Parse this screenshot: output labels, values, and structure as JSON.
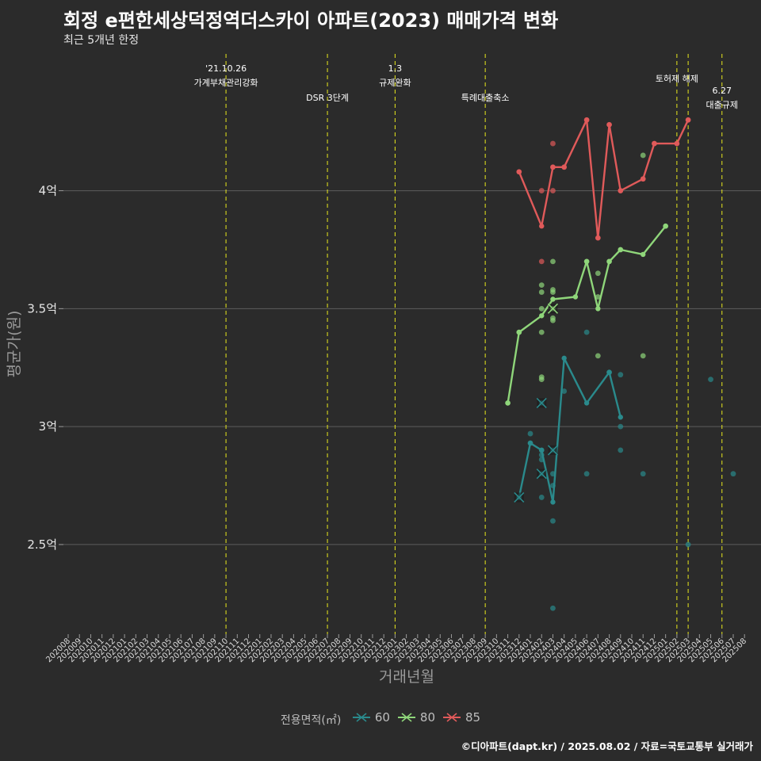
{
  "title": "회정 e편한세상덕정역더스카이 아파트(2023) 매매가격 변화",
  "subtitle": "최근 5개년 한정",
  "footer": "©디아파트(dapt.kr) / 2025.08.02 / 자료=국토교통부 실거래가",
  "chart_data": {
    "type": "line",
    "xlabel": "거래년월",
    "ylabel": "평균가(원)",
    "x_ticks": [
      "202008",
      "202009",
      "202010",
      "202011",
      "202012",
      "202101",
      "202102",
      "202103",
      "202104",
      "202105",
      "202106",
      "202107",
      "202108",
      "202109",
      "202110",
      "202111",
      "202112",
      "202201",
      "202202",
      "202203",
      "202204",
      "202205",
      "202206",
      "202207",
      "202208",
      "202209",
      "202210",
      "202211",
      "202212",
      "202301",
      "202302",
      "202303",
      "202304",
      "202305",
      "202306",
      "202307",
      "202308",
      "202309",
      "202310",
      "202311",
      "202312",
      "202401",
      "202402",
      "202403",
      "202404",
      "202405",
      "202406",
      "202407",
      "202408",
      "202409",
      "202410",
      "202411",
      "202412",
      "202501",
      "202502",
      "202503",
      "202504",
      "202505",
      "202506",
      "202507",
      "202508"
    ],
    "ylim": [
      2.12,
      4.58
    ],
    "y_ticks": [
      {
        "value": 2.5,
        "label": "2.5억"
      },
      {
        "value": 3.0,
        "label": "3억"
      },
      {
        "value": 3.5,
        "label": "3.5억"
      },
      {
        "value": 4.0,
        "label": "4억"
      }
    ],
    "grid": true,
    "legend": {
      "title": "전용면적(㎡)",
      "position": "bottom",
      "items": [
        "60",
        "80",
        "85"
      ]
    },
    "events": [
      {
        "x": "202110",
        "label1": "'21.10.26",
        "label2": "가계부채관리강화",
        "row": 1
      },
      {
        "x": "202207",
        "label1": "",
        "label2": "DSR 3단계",
        "row": 2
      },
      {
        "x": "202301",
        "label1": "1.3",
        "label2": "규제완화",
        "row": 1
      },
      {
        "x": "202309",
        "label1": "",
        "label2": "특례대출축소",
        "row": 2
      },
      {
        "x": "202502",
        "label1": "",
        "label2": "토허제 해제",
        "row": 1
      },
      {
        "x": "202503",
        "label1": "",
        "label2": "",
        "row": 1
      },
      {
        "x": "202506",
        "label1": "6.27",
        "label2": "대출규제",
        "row": 3
      }
    ],
    "series": [
      {
        "name": "60",
        "color": "#2a8a8c",
        "line": [
          [
            "202312",
            2.7
          ],
          [
            "202401",
            2.93
          ],
          [
            "202402",
            2.9
          ],
          [
            "202403",
            2.68
          ],
          [
            "202404",
            3.29
          ],
          [
            "202406",
            3.1
          ],
          [
            "202408",
            3.23
          ],
          [
            "202409",
            3.04
          ]
        ],
        "points": [
          [
            "202312",
            2.7
          ],
          [
            "202401",
            2.97
          ],
          [
            "202401",
            2.93
          ],
          [
            "202402",
            3.1
          ],
          [
            "202402",
            2.9
          ],
          [
            "202402",
            2.88
          ],
          [
            "202402",
            2.86
          ],
          [
            "202402",
            2.8
          ],
          [
            "202402",
            2.7
          ],
          [
            "202403",
            2.9
          ],
          [
            "202403",
            2.8
          ],
          [
            "202403",
            2.75
          ],
          [
            "202403",
            2.6
          ],
          [
            "202403",
            2.23
          ],
          [
            "202404",
            3.15
          ],
          [
            "202406",
            3.4
          ],
          [
            "202406",
            2.8
          ],
          [
            "202408",
            3.23
          ],
          [
            "202409",
            3.22
          ],
          [
            "202409",
            3.0
          ],
          [
            "202409",
            2.9
          ],
          [
            "202411",
            2.8
          ],
          [
            "202503",
            2.5
          ],
          [
            "202505",
            3.2
          ],
          [
            "202507",
            2.8
          ]
        ],
        "crosses": [
          [
            "202312",
            2.7
          ],
          [
            "202402",
            3.1
          ],
          [
            "202402",
            2.8
          ],
          [
            "202403",
            2.9
          ]
        ]
      },
      {
        "name": "80",
        "color": "#8fd67a",
        "line": [
          [
            "202311",
            3.1
          ],
          [
            "202312",
            3.4
          ],
          [
            "202402",
            3.47
          ],
          [
            "202403",
            3.54
          ],
          [
            "202405",
            3.55
          ],
          [
            "202406",
            3.7
          ],
          [
            "202407",
            3.5
          ],
          [
            "202408",
            3.7
          ],
          [
            "202409",
            3.75
          ],
          [
            "202411",
            3.73
          ],
          [
            "202501",
            3.85
          ]
        ],
        "points": [
          [
            "202311",
            3.1
          ],
          [
            "202312",
            3.4
          ],
          [
            "202402",
            3.6
          ],
          [
            "202402",
            3.57
          ],
          [
            "202402",
            3.5
          ],
          [
            "202402",
            3.4
          ],
          [
            "202402",
            3.21
          ],
          [
            "202402",
            3.2
          ],
          [
            "202403",
            3.7
          ],
          [
            "202403",
            3.58
          ],
          [
            "202403",
            3.57
          ],
          [
            "202403",
            3.5
          ],
          [
            "202403",
            3.46
          ],
          [
            "202403",
            3.45
          ],
          [
            "202406",
            3.7
          ],
          [
            "202407",
            3.65
          ],
          [
            "202407",
            3.55
          ],
          [
            "202407",
            3.3
          ],
          [
            "202408",
            3.7
          ],
          [
            "202409",
            3.75
          ],
          [
            "202411",
            3.3
          ],
          [
            "202411",
            4.15
          ],
          [
            "202501",
            3.85
          ]
        ],
        "crosses": [
          [
            "202403",
            3.5
          ]
        ]
      },
      {
        "name": "85",
        "color": "#e05a5a",
        "line": [
          [
            "202312",
            4.08
          ],
          [
            "202402",
            3.85
          ],
          [
            "202403",
            4.1
          ],
          [
            "202404",
            4.1
          ],
          [
            "202406",
            4.3
          ],
          [
            "202407",
            3.8
          ],
          [
            "202408",
            4.28
          ],
          [
            "202409",
            4.0
          ],
          [
            "202411",
            4.05
          ],
          [
            "202412",
            4.2
          ],
          [
            "202502",
            4.2
          ],
          [
            "202503",
            4.3
          ]
        ],
        "points": [
          [
            "202312",
            4.08
          ],
          [
            "202402",
            4.0
          ],
          [
            "202402",
            3.7
          ],
          [
            "202403",
            4.2
          ],
          [
            "202403",
            4.1
          ],
          [
            "202403",
            4.0
          ],
          [
            "202404",
            4.1
          ],
          [
            "202406",
            4.3
          ],
          [
            "202407",
            3.8
          ],
          [
            "202408",
            4.28
          ],
          [
            "202409",
            4.0
          ],
          [
            "202411",
            4.05
          ],
          [
            "202412",
            4.2
          ],
          [
            "202502",
            4.2
          ],
          [
            "202503",
            4.3
          ]
        ],
        "crosses": []
      }
    ]
  }
}
